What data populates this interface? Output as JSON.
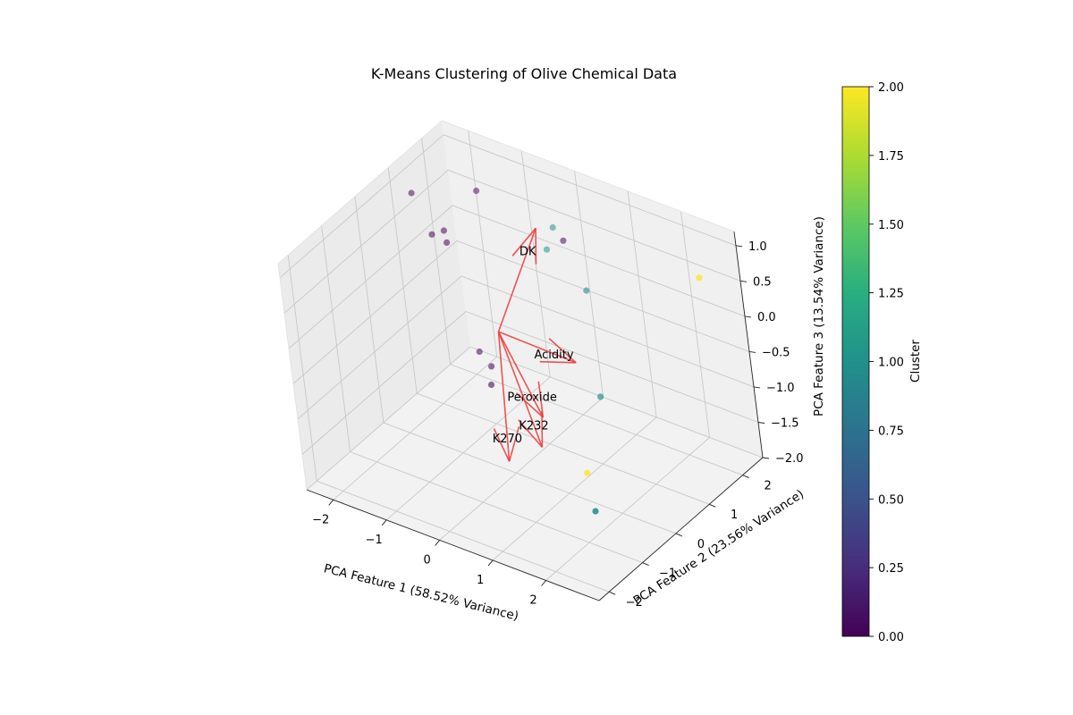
{
  "chart_data": {
    "type": "scatter",
    "title": "K-Means Clustering of Olive Chemical Data",
    "xlabel": "PCA Feature 1 (58.52% Variance)",
    "ylabel": "PCA Feature 2 (23.56% Variance)",
    "zlabel": "PCA Feature 3 (13.54% Variance)",
    "xlim": [
      -2.5,
      3.0
    ],
    "ylim": [
      -2.3,
      2.6
    ],
    "zlim": [
      -2.0,
      1.2
    ],
    "xticks": [
      -2,
      -1,
      0,
      1,
      2
    ],
    "yticks": [
      -2,
      -1,
      0,
      1,
      2
    ],
    "zticks": [
      -2.0,
      -1.5,
      -1.0,
      -0.5,
      0.0,
      0.5,
      1.0
    ],
    "x_tick_labels": [
      "−2",
      "−1",
      "0",
      "1",
      "2"
    ],
    "y_tick_labels": [
      "−2",
      "−1",
      "0",
      "1",
      "2"
    ],
    "z_tick_labels": [
      "−2.0",
      "−1.5",
      "−1.0",
      "−0.5",
      "0.0",
      "0.5",
      "1.0"
    ],
    "grid": true,
    "colormap": "viridis",
    "points": [
      {
        "x": -2.4,
        "y": 1.4,
        "z": 0.7,
        "cluster": 0
      },
      {
        "x": -1.7,
        "y": 2.2,
        "z": 0.6,
        "cluster": 0
      },
      {
        "x": -2.1,
        "y": 1.4,
        "z": 0.2,
        "cluster": 0
      },
      {
        "x": -2.0,
        "y": 1.6,
        "z": 0.2,
        "cluster": 0
      },
      {
        "x": -1.9,
        "y": 1.5,
        "z": 0.1,
        "cluster": 0
      },
      {
        "x": -1.6,
        "y": 1.6,
        "z": -1.4,
        "cluster": 0
      },
      {
        "x": -1.4,
        "y": 1.6,
        "z": -1.55,
        "cluster": 0
      },
      {
        "x": -1.3,
        "y": 1.4,
        "z": -1.7,
        "cluster": 0
      },
      {
        "x": -0.4,
        "y": 2.6,
        "z": 0.1,
        "cluster": 0
      },
      {
        "x": -0.5,
        "y": 2.5,
        "z": 0.3,
        "cluster": 1
      },
      {
        "x": -0.6,
        "y": 2.4,
        "z": 0.0,
        "cluster": 1
      },
      {
        "x": 0.3,
        "y": 2.1,
        "z": -0.2,
        "cluster": 1
      },
      {
        "x": 0.9,
        "y": 1.3,
        "z": -1.2,
        "cluster": 1
      },
      {
        "x": 2.2,
        "y": -1.0,
        "z": -1.5,
        "cluster": 1
      },
      {
        "x": 3.0,
        "y": 1.5,
        "z": 1.0,
        "cluster": 2
      },
      {
        "x": 1.4,
        "y": 0.0,
        "z": -1.6,
        "cluster": 2
      }
    ],
    "loadings": [
      {
        "name": "DK",
        "dx": 0.7,
        "dy": 0.4,
        "dz": 1.5
      },
      {
        "name": "Acidity",
        "dx": 1.6,
        "dy": -0.2,
        "dz": 0.1
      },
      {
        "name": "Peroxide",
        "dx": 1.4,
        "dy": -1.0,
        "dz": -0.4
      },
      {
        "name": "K232",
        "dx": 1.6,
        "dy": -1.4,
        "dz": -0.6
      },
      {
        "name": "K270",
        "dx": 1.5,
        "dy": -2.2,
        "dz": -0.5
      }
    ],
    "loading_origin": [
      0,
      0,
      0
    ],
    "loading_color": "#ee4040",
    "colorbar": {
      "label": "Cluster",
      "min": 0.0,
      "max": 2.0,
      "ticks": [
        "0.00",
        "0.25",
        "0.50",
        "0.75",
        "1.00",
        "1.25",
        "1.50",
        "1.75",
        "2.00"
      ]
    }
  }
}
